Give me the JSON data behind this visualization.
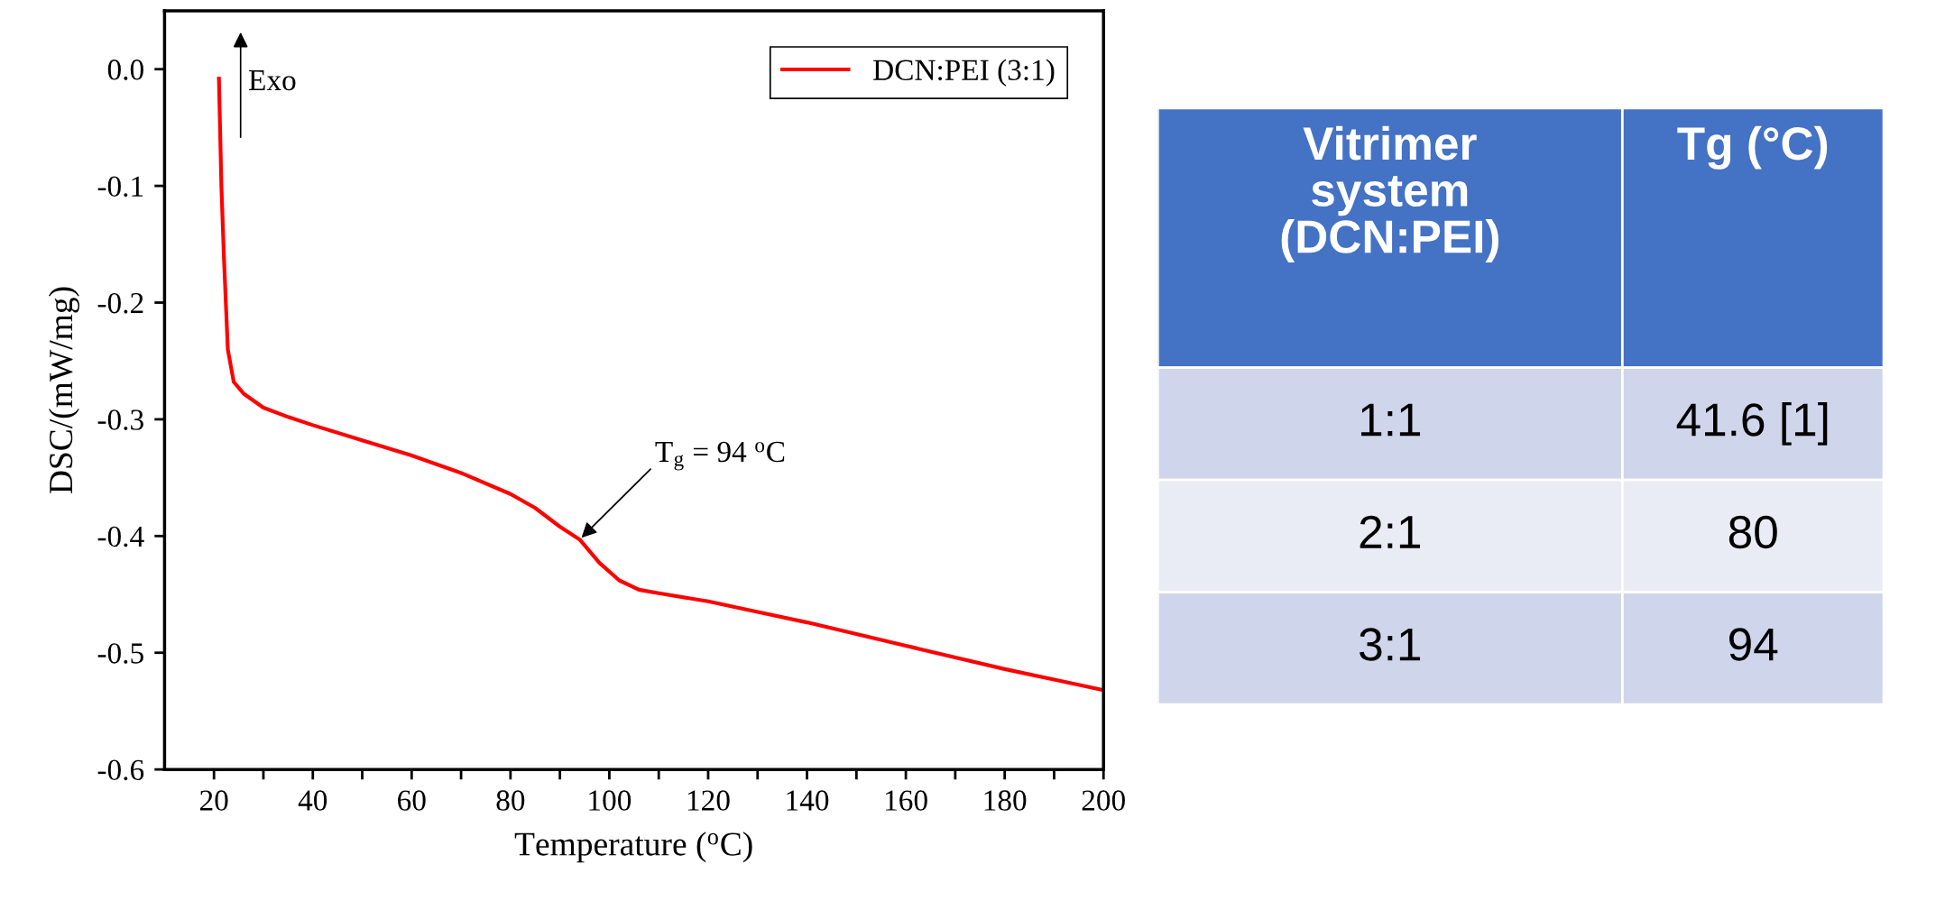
{
  "chart_data": [
    {
      "type": "line",
      "xlabel": "Temperature ($^{o}$C)",
      "ylabel": "DSC/(mW/mg)",
      "xlim": [
        10,
        200
      ],
      "ylim": [
        -0.6,
        0.05
      ],
      "xticks": [
        20,
        {
          "value": 30,
          "label": null
        },
        40,
        {
          "value": 50,
          "label": null
        },
        60,
        {
          "value": 70,
          "label": null
        },
        80,
        {
          "value": 90,
          "label": null
        },
        100,
        {
          "value": 110,
          "label": null
        },
        120,
        {
          "value": 130,
          "label": null
        },
        140,
        {
          "value": 150,
          "label": null
        },
        160,
        {
          "value": 170,
          "label": null
        },
        180,
        {
          "value": 190,
          "label": null
        },
        200
      ],
      "yticks": [
        {
          "value": -0.6,
          "label": "-0.6"
        },
        {
          "value": -0.5,
          "label": "-0.5"
        },
        {
          "value": -0.4,
          "label": "-0.4"
        },
        {
          "value": -0.3,
          "label": "-0.3"
        },
        {
          "value": -0.2,
          "label": "-0.2"
        },
        {
          "value": -0.1,
          "label": "-0.1"
        },
        {
          "value": 0.0,
          "label": "0.0"
        }
      ],
      "legend": "top right",
      "grid": false,
      "marker": "none",
      "line_style": "solid",
      "annotations": [
        "Exo",
        {
          "text": "T$_{g}$ = 94 $^{o}$C",
          "x": 94,
          "y": -0.403
        }
      ],
      "series": [
        {
          "name": "DCN:PEI (3:1)",
          "color": "#ff0000",
          "x": [
            21,
            21.5,
            22,
            22.8,
            24,
            26,
            30,
            35,
            40,
            50,
            60,
            70,
            80,
            85,
            90,
            94,
            98,
            102,
            106,
            110,
            120,
            130,
            140,
            150,
            160,
            170,
            180,
            190,
            200
          ],
          "values": [
            -0.008,
            -0.1,
            -0.16,
            -0.24,
            -0.268,
            -0.278,
            -0.29,
            -0.298,
            -0.305,
            -0.318,
            -0.331,
            -0.346,
            -0.364,
            -0.376,
            -0.392,
            -0.403,
            -0.423,
            -0.438,
            -0.446,
            -0.449,
            -0.456,
            -0.465,
            -0.474,
            -0.484,
            -0.494,
            -0.504,
            -0.514,
            -0.523,
            -0.532
          ]
        }
      ]
    },
    {
      "type": "other",
      "categories": [
        "Vitrimer\nsystem\n(DCN:PEI)",
        "Tg (°C)"
      ],
      "cell_labels": [
        [
          "1:1",
          "41.6 [1]"
        ],
        [
          "2:1",
          "80"
        ],
        [
          "3:1",
          "94"
        ]
      ],
      "colors": [
        "#4472c4",
        "#4472c4"
      ]
    }
  ]
}
